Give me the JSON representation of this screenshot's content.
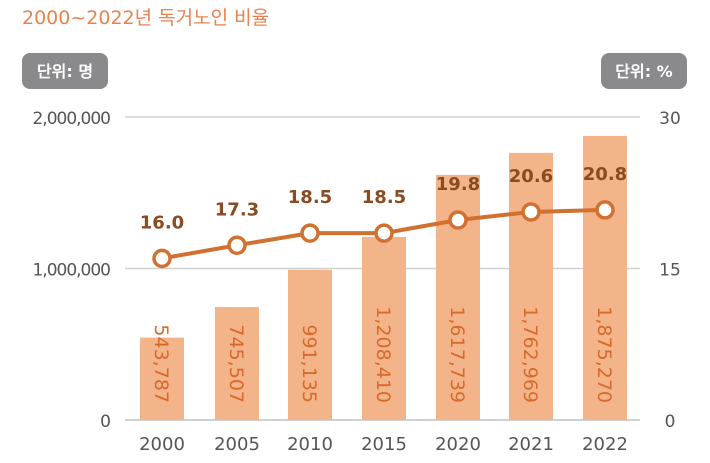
{
  "chart_data": {
    "type": "bar+line",
    "title": "2000~2022년 독거노인 비율",
    "left_unit_label": "단위: 명",
    "right_unit_label": "단위: %",
    "categories": [
      "2000",
      "2005",
      "2010",
      "2015",
      "2020",
      "2021",
      "2022"
    ],
    "bar_series": {
      "values": [
        543787,
        745507,
        991135,
        1208410,
        1617739,
        1762969,
        1875270
      ],
      "labels": [
        "543,787",
        "745,507",
        "991,135",
        "1,208,410",
        "1,617,739",
        "1,762,969",
        "1,875,270"
      ],
      "color": "#f4b48a",
      "label_color": "#d9692a"
    },
    "line_series": {
      "values": [
        16.0,
        17.3,
        18.5,
        18.5,
        19.8,
        20.6,
        20.8
      ],
      "labels": [
        "16.0",
        "17.3",
        "18.5",
        "18.5",
        "19.8",
        "20.6",
        "20.8"
      ],
      "color": "#d2702f",
      "label_color": "#8a4a22"
    },
    "left_axis": {
      "ylim": [
        0,
        2000000
      ],
      "ticks": [
        "0",
        "1,000,000",
        "2,000,000"
      ],
      "tick_values": [
        0,
        1000000,
        2000000
      ]
    },
    "right_axis": {
      "ylim": [
        0,
        30
      ],
      "ticks": [
        "0",
        "15",
        "30"
      ],
      "tick_values": [
        0,
        15,
        30
      ]
    },
    "grid": true,
    "colors": {
      "title": "#e8834e",
      "badge": "#8a8a8c",
      "grid": "#d0d0d0",
      "tick_text": "#555555"
    }
  }
}
